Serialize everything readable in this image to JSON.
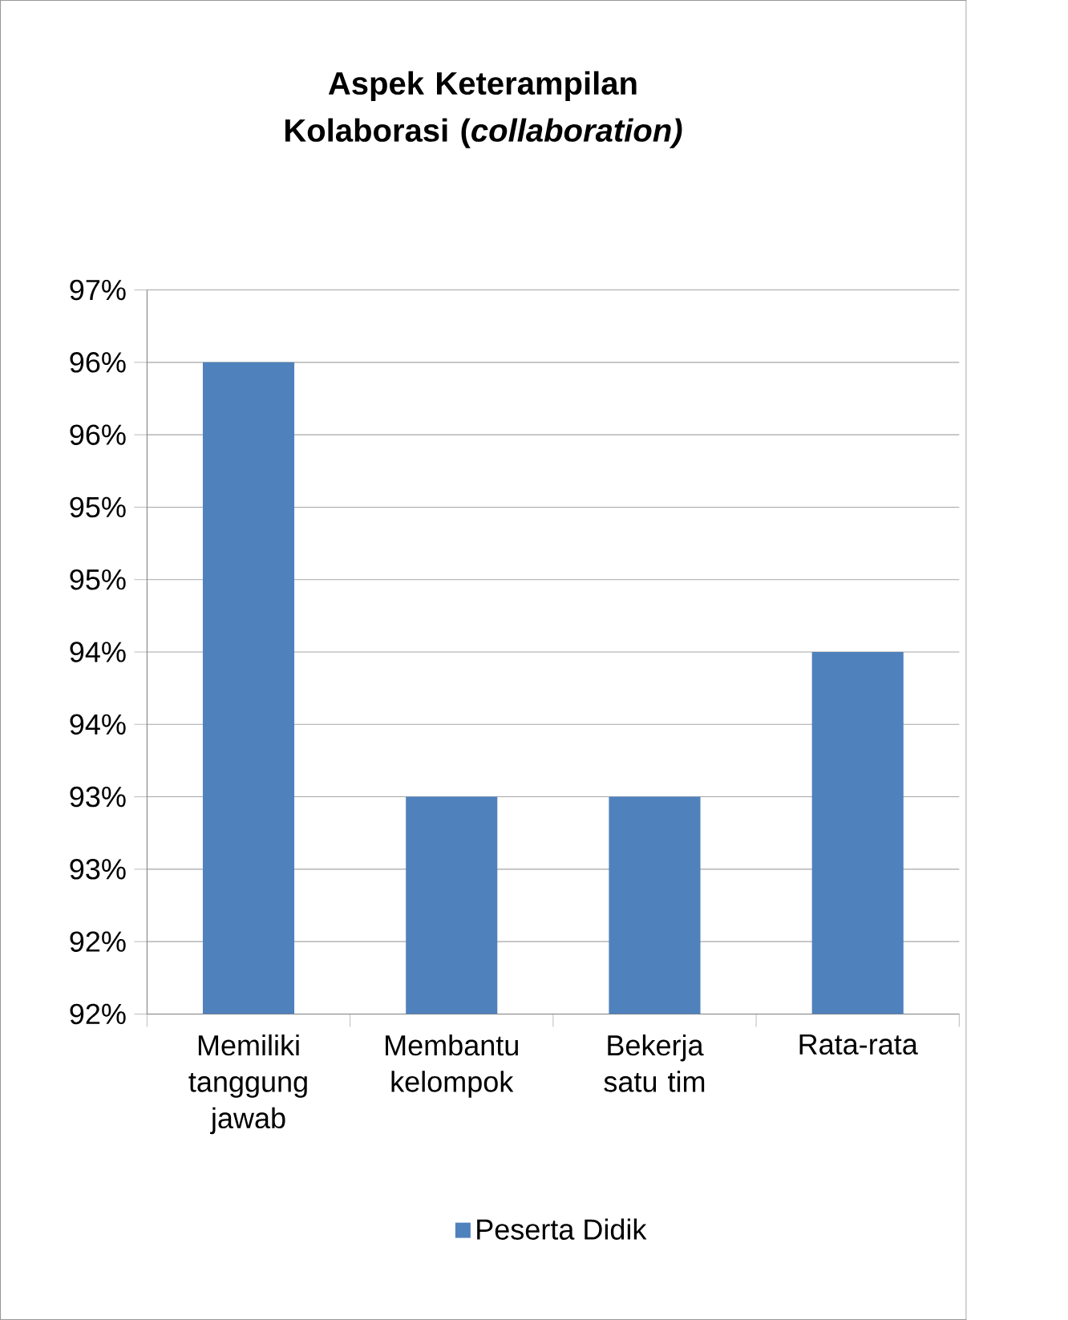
{
  "chart_data": {
    "type": "bar",
    "title": "Aspek Keterampilan Kolaborasi (*collaboration)*",
    "categories": [
      "Memiliki tanggung jawab",
      "Membantu kelompok",
      "Bekerja satu tim",
      "Rata-rata"
    ],
    "series": [
      {
        "name": "Peserta Didik",
        "color": "#4f81bd",
        "values": [
          96.0,
          93.0,
          93.0,
          94.0
        ]
      }
    ],
    "ylim": [
      91.5,
      96.5
    ],
    "yticks": [
      {
        "value": 91.5,
        "label": "92%"
      },
      {
        "value": 92,
        "label": "92%"
      },
      {
        "value": 92.5,
        "label": "93%"
      },
      {
        "value": 93,
        "label": "93%"
      },
      {
        "value": 93.5,
        "label": "94%"
      },
      {
        "value": 94,
        "label": "94%"
      },
      {
        "value": 94.5,
        "label": "95%"
      },
      {
        "value": 95,
        "label": "95%"
      },
      {
        "value": 95.5,
        "label": "96%"
      },
      {
        "value": 96,
        "label": "96%"
      },
      {
        "value": 96.5,
        "label": "97%"
      }
    ],
    "grid": "y",
    "legend": "bottom"
  }
}
